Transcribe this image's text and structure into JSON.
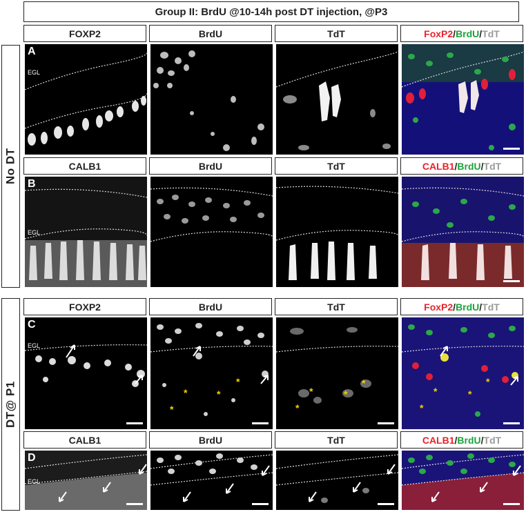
{
  "title": "Group II: BrdU @10-14h post DT injection, @P3",
  "side_labels": {
    "top": "No DT",
    "bottom": "DT@ P1"
  },
  "channel_labels": {
    "foxp2": "FOXP2",
    "calb1": "CALB1",
    "brdu": "BrdU",
    "tdt": "TdT",
    "merge_foxp2": {
      "a": "FoxP2",
      "s1": "/",
      "b": "BrdU",
      "s2": "/",
      "c": "TdT"
    },
    "merge_calb1": {
      "a": "CALB1",
      "s1": "/",
      "b": "BrdU",
      "s2": "/",
      "c": "TdT"
    }
  },
  "row_letters": {
    "a": "A",
    "b": "B",
    "c": "C",
    "d": "D"
  },
  "egl_label": "EGL",
  "asterisk": "*",
  "colors": {
    "red": "#e8232a",
    "green": "#1aa33a",
    "gray": "#9a9a9a",
    "asterisk": "#f4d000"
  }
}
